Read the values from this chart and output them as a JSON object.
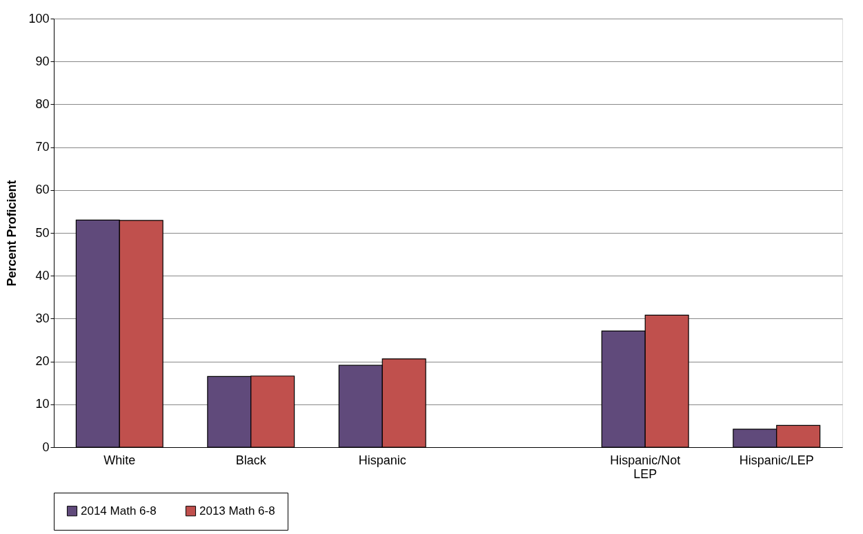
{
  "chart_data": {
    "type": "bar",
    "ylabel": "Percent Proficient",
    "categories": [
      "White",
      "Black",
      "Hispanic",
      null,
      "Hispanic/Not LEP",
      "Hispanic/LEP"
    ],
    "series": [
      {
        "name": "2014 Math 6-8",
        "color": "#604a7b",
        "values": [
          53,
          16.5,
          19.1,
          null,
          27.1,
          4.2
        ]
      },
      {
        "name": "2013 Math 6-8",
        "color": "#c0504d",
        "values": [
          52.9,
          16.6,
          20.6,
          null,
          30.8,
          5.1
        ]
      }
    ],
    "ylim": [
      0,
      100
    ],
    "yticks": [
      0,
      10,
      20,
      30,
      40,
      50,
      60,
      70,
      80,
      90,
      100
    ],
    "grid": "y",
    "legend": "bottom"
  }
}
